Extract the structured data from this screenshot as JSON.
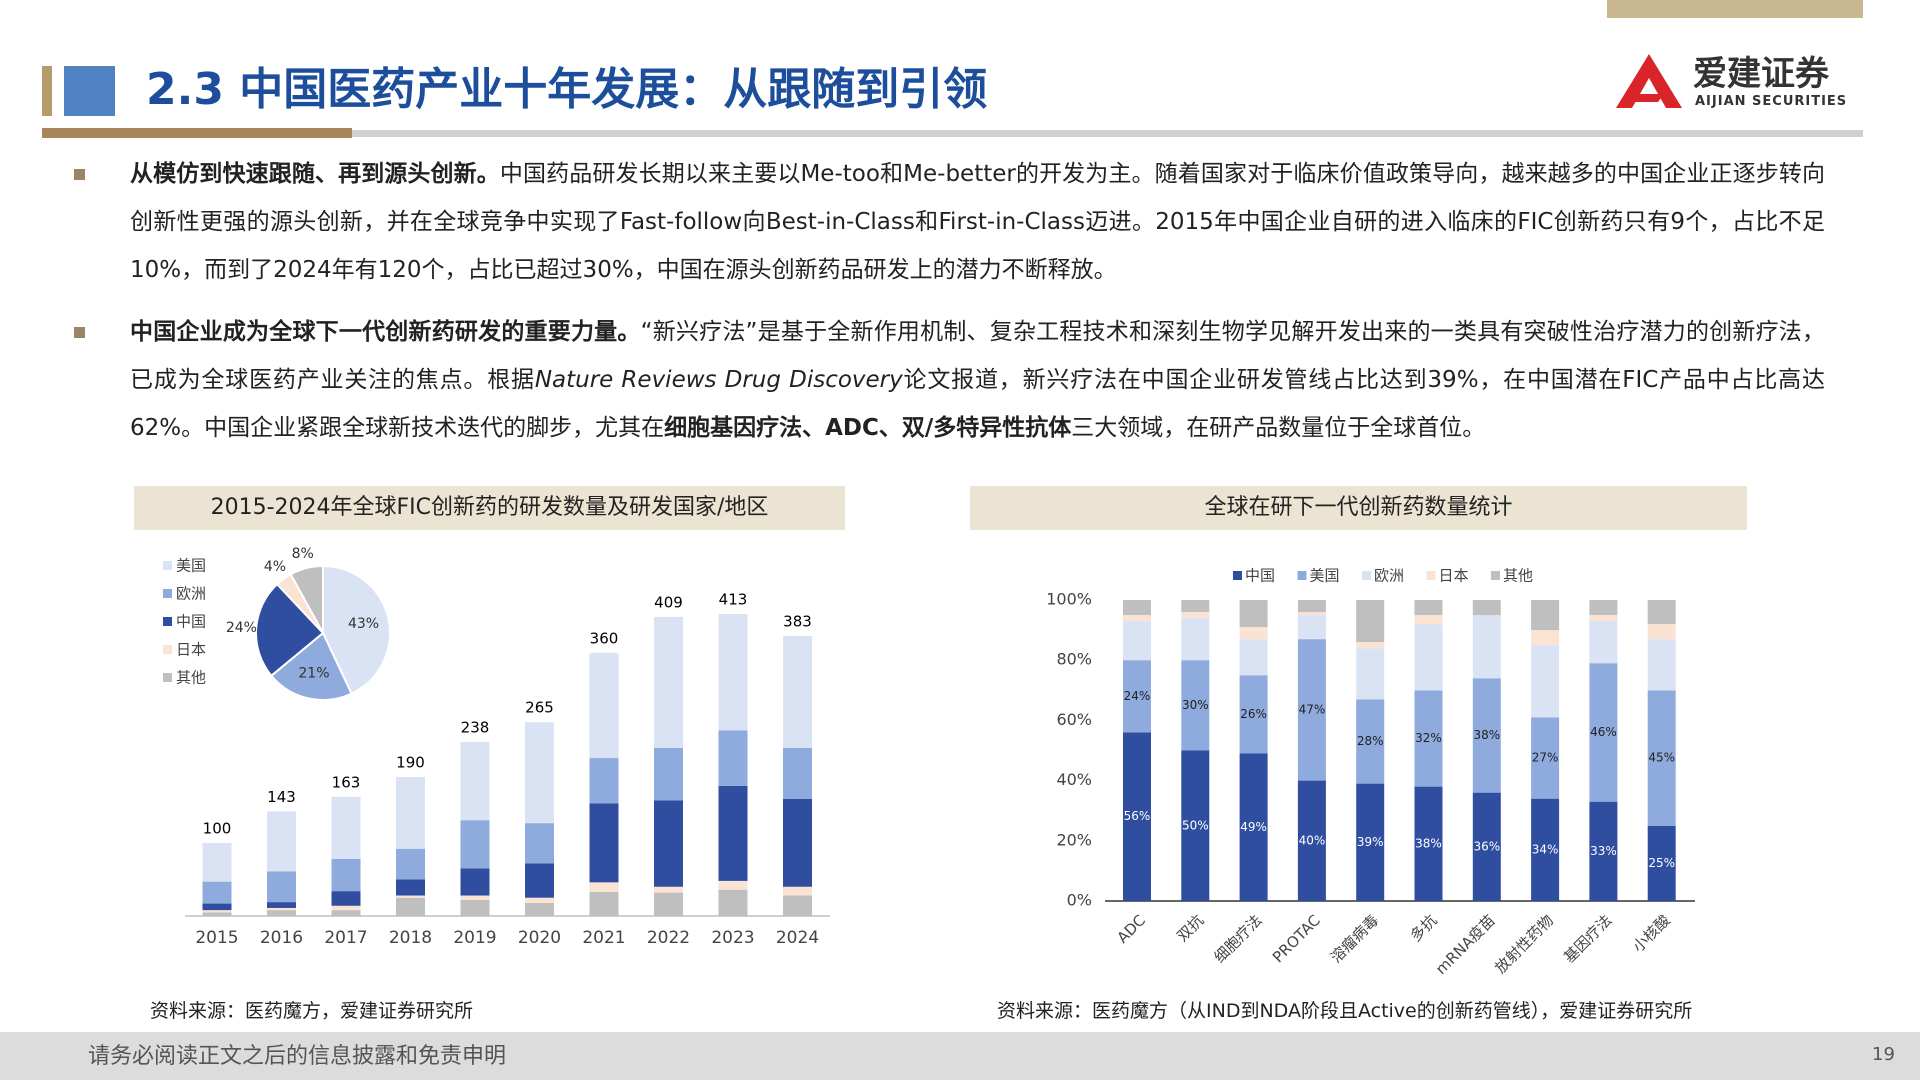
{
  "header": {
    "title": "2.3 中国医药产业十年发展：从跟随到引领",
    "logo": {
      "name": "爱建证券",
      "en": "AIJIAN SECURITIES"
    }
  },
  "bullets": [
    [
      {
        "text": "从模仿到快速跟随、再到源头创新。",
        "style": "bold"
      },
      {
        "text": "中国药品研发长期以来主要以Me-too和Me-better的开发为主。随着国家对于临床价值政策导向，越来越多的中国企业正逐步转向创新性更强的源头创新，并在全球竞争中实现了Fast-follow向Best-in-Class和First-in-Class迈进。2015年中国企业自研的进入临床的FIC创新药只有9个，占比不足10%，而到了2024年有120个，占比已超过30%，中国在源头创新药品研发上的潜力不断释放。",
        "style": "normal"
      }
    ],
    [
      {
        "text": "中国企业成为全球下一代创新药研发的重要力量。",
        "style": "bold"
      },
      {
        "text": "“新兴疗法”是基于全新作用机制、复杂工程技术和深刻生物学见解开发出来的一类具有突破性治疗潜力的创新疗法，已成为全球医药产业关注的焦点。根据",
        "style": "normal"
      },
      {
        "text": "Nature Reviews Drug Discovery",
        "style": "italic"
      },
      {
        "text": "论文报道，新兴疗法在中国企业研发管线占比达到39%，在中国潜在FIC产品中占比高达62%。中国企业紧跟全球新技术迭代的脚步，尤其在",
        "style": "normal"
      },
      {
        "text": "细胞基因疗法、ADC、双/多特异性抗体",
        "style": "bold"
      },
      {
        "text": "三大领域，在研产品数量位于全球首位。",
        "style": "normal"
      }
    ]
  ],
  "chart_data": [
    {
      "type": "bar",
      "stacked": true,
      "title": "2015-2024年全球FIC创新药的研发数量及研发国家/地区",
      "categories": [
        "2015",
        "2016",
        "2017",
        "2018",
        "2019",
        "2020",
        "2021",
        "2022",
        "2023",
        "2024"
      ],
      "series": [
        {
          "name": "美国",
          "color": "#dae3f3",
          "values": [
            53,
            82,
            85,
            98,
            107,
            138,
            144,
            179,
            159,
            153
          ]
        },
        {
          "name": "欧洲",
          "color": "#8faadc",
          "values": [
            30,
            42,
            44,
            42,
            66,
            55,
            62,
            72,
            76,
            70
          ]
        },
        {
          "name": "中国",
          "color": "#2f4ea0",
          "values": [
            9,
            8,
            20,
            22,
            37,
            47,
            108,
            118,
            130,
            120
          ]
        },
        {
          "name": "日本",
          "color": "#fbe3d4",
          "values": [
            3,
            3,
            6,
            3,
            6,
            7,
            13,
            8,
            12,
            12
          ]
        },
        {
          "name": "其他",
          "color": "#bfbfbf",
          "values": [
            5,
            8,
            8,
            25,
            22,
            18,
            33,
            32,
            36,
            28
          ]
        }
      ],
      "totals": [
        100,
        143,
        163,
        190,
        238,
        265,
        360,
        409,
        413,
        383
      ],
      "source": "资料来源：医药魔方，爱建证券研究所"
    },
    {
      "type": "pie",
      "values": [
        43,
        21,
        24,
        4,
        8
      ],
      "value_labels": [
        "43%",
        "21%",
        "24%",
        "4%",
        "8%"
      ]
    },
    {
      "type": "bar",
      "stacked": true,
      "title": "全球在研下一代创新药数量统计",
      "categories": [
        "ADC",
        "双抗",
        "细胞疗法",
        "PROTAC",
        "溶瘤病毒",
        "多抗",
        "mRNA疫苗",
        "放射性药物",
        "基因疗法",
        "小核酸"
      ],
      "series": [
        {
          "name": "中国",
          "color": "#2f4ea0",
          "values": [
            56,
            50,
            49,
            40,
            39,
            38,
            36,
            34,
            33,
            25
          ],
          "value_labels": [
            "56%",
            "50%",
            "49%",
            "40%",
            "39%",
            "38%",
            "36%",
            "34%",
            "33%",
            "25%"
          ]
        },
        {
          "name": "美国",
          "color": "#8faadc",
          "values": [
            24,
            30,
            26,
            47,
            28,
            32,
            38,
            27,
            46,
            45
          ],
          "value_labels": [
            "24%",
            "30%",
            "26%",
            "47%",
            "28%",
            "32%",
            "38%",
            "27%",
            "46%",
            "45%"
          ]
        },
        {
          "name": "欧洲",
          "color": "#dae3f3",
          "values": [
            13,
            14,
            12,
            8,
            17,
            22,
            21,
            24,
            14,
            17
          ]
        },
        {
          "name": "日本",
          "color": "#fbe3d4",
          "values": [
            2,
            2,
            4,
            1,
            2,
            3,
            0,
            5,
            2,
            5
          ]
        },
        {
          "name": "其他",
          "color": "#bfbfbf",
          "values": [
            5,
            4,
            9,
            4,
            14,
            5,
            5,
            10,
            5,
            8
          ]
        }
      ],
      "ylim": [
        0,
        100
      ],
      "yticks": [
        {
          "value": 0,
          "label": "0%"
        },
        {
          "value": 20,
          "label": "20%"
        },
        {
          "value": 40,
          "label": "40%"
        },
        {
          "value": 60,
          "label": "60%"
        },
        {
          "value": 80,
          "label": "80%"
        },
        {
          "value": 100,
          "label": "100%"
        }
      ],
      "source": "资料来源：医药魔方（从IND到NDA阶段且Active的创新药管线），爱建证券研究所"
    }
  ],
  "footer": {
    "disclaimer": "请务必阅读正文之后的信息披露和免责申明",
    "page": 19
  }
}
